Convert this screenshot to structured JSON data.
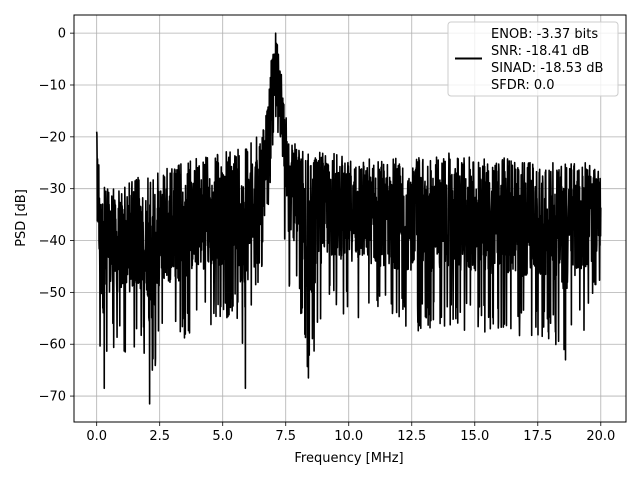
{
  "chart_data": {
    "type": "line",
    "title": "",
    "xlabel": "Frequency [MHz]",
    "ylabel": "PSD [dB]",
    "xlim": [
      -0.9,
      21.0
    ],
    "ylim": [
      -75,
      3.5
    ],
    "xticks": [
      0.0,
      2.5,
      5.0,
      7.5,
      10.0,
      12.5,
      15.0,
      17.5,
      20.0
    ],
    "xtick_labels": [
      "0.0",
      "2.5",
      "5.0",
      "7.5",
      "10.0",
      "12.5",
      "15.0",
      "17.5",
      "20.0"
    ],
    "yticks": [
      0,
      -10,
      -20,
      -30,
      -40,
      -50,
      -60,
      -70
    ],
    "ytick_labels": [
      "0",
      "−10",
      "−20",
      "−30",
      "−40",
      "−50",
      "−60",
      "−70"
    ],
    "grid": true,
    "legend": {
      "placement": "top-right",
      "entries": [
        "ENOB: -3.37 bits",
        "SNR: -18.41 dB",
        "SINAD: -18.53 dB",
        "SFDR: 0.0"
      ]
    },
    "series": [
      {
        "color": "#000000",
        "peak": {
          "x": 7.1,
          "y": 0.0
        },
        "features": [
          {
            "x": 0.0,
            "y": -19.0
          },
          {
            "x": 0.3,
            "y": -68.5
          },
          {
            "x": 2.1,
            "y": -71.5
          },
          {
            "x": 5.9,
            "y": -68.5
          },
          {
            "x": 8.4,
            "y": -66.5
          },
          {
            "x": 18.6,
            "y": -63.0
          }
        ],
        "envelope": [
          {
            "x": 0.0,
            "hi": -19.0,
            "lo": -35.0
          },
          {
            "x": 0.1,
            "hi": -25.0,
            "lo": -61.0
          },
          {
            "x": 0.3,
            "hi": -28.0,
            "lo": -68.5
          },
          {
            "x": 0.5,
            "hi": -30.0,
            "lo": -61.0
          },
          {
            "x": 1.0,
            "hi": -29.0,
            "lo": -62.0
          },
          {
            "x": 1.5,
            "hi": -28.0,
            "lo": -61.0
          },
          {
            "x": 2.0,
            "hi": -27.0,
            "lo": -62.0
          },
          {
            "x": 2.1,
            "hi": -26.5,
            "lo": -71.5
          },
          {
            "x": 2.5,
            "hi": -26.0,
            "lo": -60.0
          },
          {
            "x": 3.0,
            "hi": -25.5,
            "lo": -60.0
          },
          {
            "x": 3.5,
            "hi": -25.0,
            "lo": -59.0
          },
          {
            "x": 4.0,
            "hi": -24.0,
            "lo": -57.0
          },
          {
            "x": 4.5,
            "hi": -23.5,
            "lo": -57.0
          },
          {
            "x": 5.0,
            "hi": -23.0,
            "lo": -56.0
          },
          {
            "x": 5.5,
            "hi": -22.0,
            "lo": -53.0
          },
          {
            "x": 5.9,
            "hi": -21.5,
            "lo": -68.5
          },
          {
            "x": 6.2,
            "hi": -21.0,
            "lo": -50.0
          },
          {
            "x": 6.5,
            "hi": -19.0,
            "lo": -48.0
          },
          {
            "x": 6.8,
            "hi": -12.0,
            "lo": -35.0
          },
          {
            "x": 6.95,
            "hi": -4.0,
            "lo": -25.0
          },
          {
            "x": 7.1,
            "hi": 0.0,
            "lo": -20.0
          },
          {
            "x": 7.25,
            "hi": -3.0,
            "lo": -27.0
          },
          {
            "x": 7.4,
            "hi": -12.0,
            "lo": -38.0
          },
          {
            "x": 7.6,
            "hi": -19.0,
            "lo": -50.0
          },
          {
            "x": 8.0,
            "hi": -22.0,
            "lo": -52.0
          },
          {
            "x": 8.4,
            "hi": -23.0,
            "lo": -66.5
          },
          {
            "x": 9.0,
            "hi": -23.0,
            "lo": -54.0
          },
          {
            "x": 10.0,
            "hi": -23.5,
            "lo": -55.0
          },
          {
            "x": 11.0,
            "hi": -24.0,
            "lo": -56.0
          },
          {
            "x": 12.0,
            "hi": -24.0,
            "lo": -57.0
          },
          {
            "x": 13.0,
            "hi": -24.0,
            "lo": -58.0
          },
          {
            "x": 14.0,
            "hi": -23.0,
            "lo": -57.0
          },
          {
            "x": 15.0,
            "hi": -24.0,
            "lo": -58.0
          },
          {
            "x": 16.0,
            "hi": -24.0,
            "lo": -58.0
          },
          {
            "x": 17.0,
            "hi": -24.5,
            "lo": -59.0
          },
          {
            "x": 18.0,
            "hi": -25.0,
            "lo": -59.0
          },
          {
            "x": 18.6,
            "hi": -25.0,
            "lo": -63.0
          },
          {
            "x": 19.0,
            "hi": -25.0,
            "lo": -58.0
          },
          {
            "x": 19.5,
            "hi": -25.0,
            "lo": -57.0
          },
          {
            "x": 20.0,
            "hi": -26.0,
            "lo": -50.0
          }
        ]
      }
    ]
  }
}
